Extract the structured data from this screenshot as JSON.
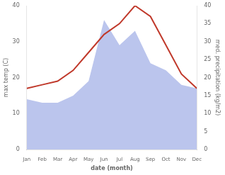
{
  "chart_data": {
    "type": "line",
    "categories": [
      "Jan",
      "Feb",
      "Mar",
      "Apr",
      "May",
      "Jun",
      "Jul",
      "Aug",
      "Sep",
      "Oct",
      "Nov",
      "Dec"
    ],
    "series": [
      {
        "type": "line",
        "color": "#c0392b",
        "values": [
          17,
          18,
          19,
          22,
          27,
          32,
          35,
          40,
          37,
          29,
          21,
          17
        ]
      },
      {
        "type": "area",
        "color": "#bbc5ed",
        "axis": "y2",
        "values": [
          14,
          13,
          13,
          15,
          19,
          36,
          29,
          33,
          24,
          22,
          18,
          17
        ]
      }
    ],
    "xlabel": "date (month)",
    "ylabel": "max temp (C)",
    "y2label": "med. precipitation (kg/m2)",
    "ylim": [
      0,
      40
    ],
    "yticks": [
      0,
      10,
      20,
      30,
      40
    ],
    "y2lim": [
      0,
      40
    ],
    "y2ticks": [
      0,
      5,
      10,
      15,
      20,
      25,
      30,
      35,
      40
    ],
    "grid": false
  }
}
